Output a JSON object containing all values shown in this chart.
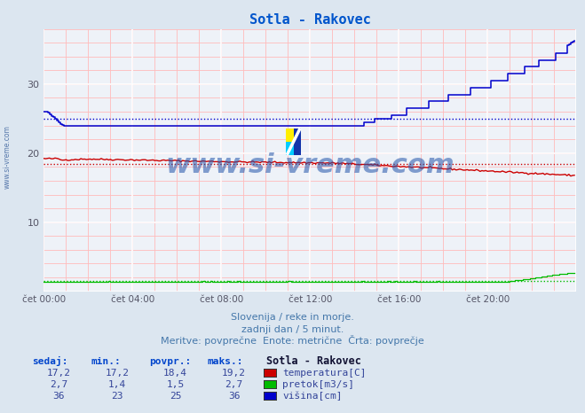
{
  "title": "Sotla - Rakovec",
  "title_color": "#0055cc",
  "bg_color": "#dce6f0",
  "plot_bg_color": "#eef2f8",
  "xlabel_ticks": [
    "čet 00:00",
    "čet 04:00",
    "čet 08:00",
    "čet 12:00",
    "čet 16:00",
    "čet 20:00"
  ],
  "ylim": [
    0,
    38
  ],
  "xlim": [
    0,
    288
  ],
  "n_points": 288,
  "temp_povpr": 18.4,
  "pretok_povpr": 1.5,
  "visina_povpr": 25,
  "temp_color": "#cc0000",
  "pretok_color": "#00bb00",
  "visina_color": "#0000cc",
  "watermark": "www.si-vreme.com",
  "watermark_color": "#2255aa",
  "footer_line1": "Slovenija / reke in morje.",
  "footer_line2": "zadnji dan / 5 minut.",
  "footer_line3": "Meritve: povprečne  Enote: metrične  Črta: povprečje",
  "footer_color": "#4477aa",
  "legend_title": "Sotla - Rakovec",
  "legend_items": [
    "temperatura[C]",
    "pretok[m3/s]",
    "višina[cm]"
  ],
  "legend_colors": [
    "#cc0000",
    "#00bb00",
    "#0000cc"
  ],
  "table_headers": [
    "sedaj:",
    "min.:",
    "povpr.:",
    "maks.:"
  ],
  "table_color": "#334499",
  "header_color": "#0044cc",
  "table_values_str": [
    [
      "17,2",
      "17,2",
      "18,4",
      "19,2"
    ],
    [
      "2,7",
      "1,4",
      "1,5",
      "2,7"
    ],
    [
      "36",
      "23",
      "25",
      "36"
    ]
  ],
  "minor_grid_color": "#ffbbbb",
  "major_grid_color": "#ffffff",
  "axis_color": "#cc0000",
  "tick_color": "#555566",
  "left_label": "www.si-vreme.com"
}
